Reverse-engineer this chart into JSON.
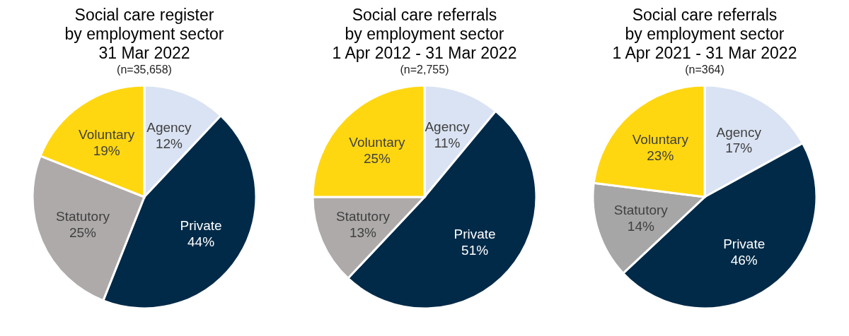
{
  "chart_data": [
    {
      "type": "pie",
      "title": "Social care register\nby employment sector\n31 Mar 2022",
      "subtitle": "(n=35,658)",
      "categories": [
        "Agency",
        "Private",
        "Statutory",
        "Voluntary"
      ],
      "values": [
        12,
        44,
        25,
        19
      ],
      "value_labels": [
        "12%",
        "44%",
        "25%",
        "19%"
      ],
      "colors": [
        "#dae3f3",
        "#002a48",
        "#aeaaaa",
        "#ffd711"
      ],
      "legend": false
    },
    {
      "type": "pie",
      "title": "Social care referrals\nby employment sector\n1 Apr 2012 - 31 Mar 2022",
      "subtitle": "(n=2,755)",
      "categories": [
        "Agency",
        "Private",
        "Statutory",
        "Voluntary"
      ],
      "values": [
        11,
        51,
        13,
        25
      ],
      "value_labels": [
        "11%",
        "51%",
        "13%",
        "25%"
      ],
      "colors": [
        "#dae3f3",
        "#002a48",
        "#aeaaaa",
        "#ffd711"
      ],
      "legend": false
    },
    {
      "type": "pie",
      "title": "Social care referrals\nby employment sector\n1 Apr 2021 - 31 Mar 2022",
      "subtitle": "(n=364)",
      "categories": [
        "Agency",
        "Private",
        "Statutory",
        "Voluntary"
      ],
      "values": [
        17,
        46,
        14,
        23
      ],
      "value_labels": [
        "17%",
        "46%",
        "14%",
        "23%"
      ],
      "colors": [
        "#dae3f3",
        "#002a48",
        "#a6a6a6",
        "#ffd711"
      ],
      "legend": false
    }
  ]
}
